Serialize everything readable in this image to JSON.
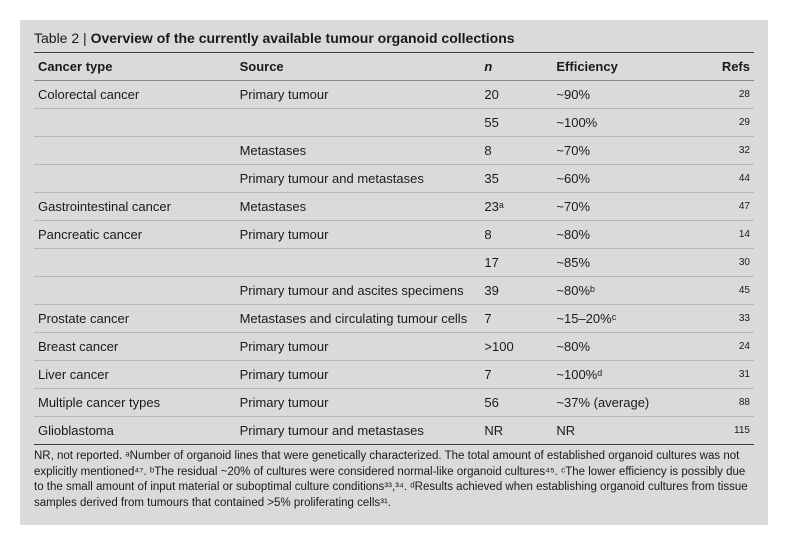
{
  "colors": {
    "background": "#d9dbd8",
    "text": "#1a1a1a",
    "header_rule": "#3a3a3a",
    "row_rule": "#b7b9b6"
  },
  "caption": {
    "label": "Table 2 |",
    "title": "Overview of the currently available tumour organoid collections"
  },
  "columns": [
    {
      "label": "Cancer type",
      "class": ""
    },
    {
      "label": "Source",
      "class": ""
    },
    {
      "label": "n",
      "class": "istyle"
    },
    {
      "label": "Efficiency",
      "class": ""
    },
    {
      "label": "Refs",
      "class": "refs"
    }
  ],
  "rows": [
    {
      "type": "Colorectal cancer",
      "source": "Primary tumour",
      "n": "20",
      "eff": "~90%",
      "refs": "28"
    },
    {
      "type": "",
      "source": "",
      "n": "55",
      "eff": "~100%",
      "refs": "29"
    },
    {
      "type": "",
      "source": "Metastases",
      "n": "8",
      "eff": "~70%",
      "refs": "32"
    },
    {
      "type": "",
      "source": "Primary tumour and metastases",
      "n": "35",
      "eff": "~60%",
      "refs": "44"
    },
    {
      "type": "Gastrointestinal cancer",
      "source": "Metastases",
      "n": "23ᵃ",
      "eff": "~70%",
      "refs": "47"
    },
    {
      "type": "Pancreatic cancer",
      "source": "Primary tumour",
      "n": "8",
      "eff": "~80%",
      "refs": "14"
    },
    {
      "type": "",
      "source": "",
      "n": "17",
      "eff": "~85%",
      "refs": "30"
    },
    {
      "type": "",
      "source": "Primary tumour and ascites specimens",
      "n": "39",
      "eff": "~80%ᵇ",
      "refs": "45"
    },
    {
      "type": "Prostate cancer",
      "source": "Metastases and circulating tumour cells",
      "n": "7",
      "eff": "~15–20%ᶜ",
      "refs": "33"
    },
    {
      "type": "Breast cancer",
      "source": "Primary tumour",
      "n": ">100",
      "eff": "~80%",
      "refs": "24"
    },
    {
      "type": "Liver cancer",
      "source": "Primary tumour",
      "n": "7",
      "eff": "~100%ᵈ",
      "refs": "31"
    },
    {
      "type": "Multiple cancer types",
      "source": "Primary tumour",
      "n": "56",
      "eff": "~37% (average)",
      "refs": "88"
    },
    {
      "type": "Glioblastoma",
      "source": "Primary tumour and metastases",
      "n": "NR",
      "eff": "NR",
      "refs": "115"
    }
  ],
  "footnote": "NR, not reported. ᵃNumber of organoid lines that were genetically characterized. The total amount of established organoid cultures was not explicitly mentioned⁴⁷. ᵇThe residual ~20% of cultures were considered normal-like organoid cultures⁴⁵. ᶜThe lower efficiency is possibly due to the small amount of input material or suboptimal culture conditions³³,³⁴. ᵈResults achieved when establishing organoid cultures from tissue samples derived from tumours that contained >5% proliferating cells³¹."
}
